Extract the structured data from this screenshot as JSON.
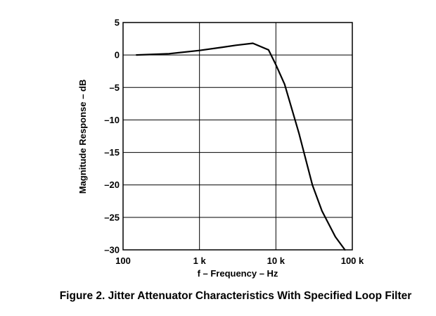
{
  "chart_data": {
    "type": "line",
    "title": "",
    "caption": "Figure 2. Jitter Attenuator Characteristics With Specified Loop Filter",
    "xlabel": "f – Frequency – Hz",
    "ylabel": "Magnitude Response – dB",
    "x_scale": "log",
    "xlim": [
      100,
      100000
    ],
    "ylim": [
      -30,
      5
    ],
    "x_ticks": [
      100,
      1000,
      10000,
      100000
    ],
    "x_tick_labels": [
      "100",
      "1 k",
      "10 k",
      "100 k"
    ],
    "y_ticks": [
      5,
      0,
      -5,
      -10,
      -15,
      -20,
      -25,
      -30
    ],
    "y_tick_labels": [
      "5",
      "0",
      "–5",
      "–10",
      "–15",
      "–20",
      "–25",
      "–30"
    ],
    "grid": true,
    "series": [
      {
        "name": "",
        "color": "#000000",
        "x": [
          150,
          400,
          1000,
          2000,
          3000,
          5000,
          8000,
          10000,
          13000,
          20000,
          30000,
          40000,
          60000,
          80000
        ],
        "y": [
          0.0,
          0.2,
          0.7,
          1.2,
          1.5,
          1.8,
          0.8,
          -1.5,
          -4.5,
          -12.0,
          -20.0,
          -24.0,
          -28.0,
          -30.0
        ]
      }
    ]
  }
}
